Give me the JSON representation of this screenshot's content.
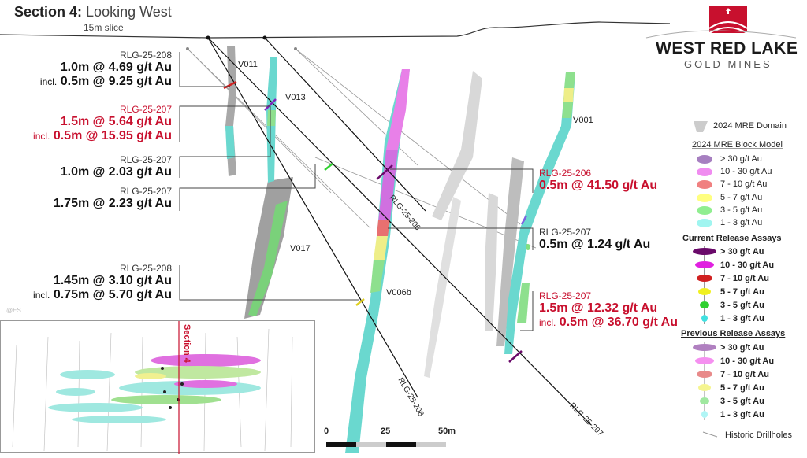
{
  "header": {
    "title_bold": "Section 4:",
    "title_light": "Looking West",
    "subtitle": "15m slice"
  },
  "logo": {
    "name": "WEST RED LAKE",
    "sub": "GOLD MINES",
    "accent": "#c8102e"
  },
  "watermark": "@ES",
  "veins": [
    "V011",
    "V013",
    "V001",
    "V017",
    "V006b"
  ],
  "drillholes": [
    "RLG-25-206",
    "RLG-25-208",
    "RLG-25-207"
  ],
  "intercepts_left": [
    {
      "hole": "RLG-25-208",
      "red": false,
      "lines": [
        {
          "prefix": "",
          "text": "1.0m @ 4.69 g/t Au"
        },
        {
          "prefix": "incl.",
          "text": "0.5m @ 9.25 g/t Au"
        }
      ]
    },
    {
      "hole": "RLG-25-207",
      "red": true,
      "lines": [
        {
          "prefix": "",
          "text": "1.5m @ 5.64 g/t Au"
        },
        {
          "prefix": "incl.",
          "text": "0.5m @ 15.95 g/t Au"
        }
      ]
    },
    {
      "hole": "RLG-25-207",
      "red": false,
      "lines": [
        {
          "prefix": "",
          "text": "1.0m @ 2.03 g/t Au"
        }
      ]
    },
    {
      "hole": "RLG-25-207",
      "red": false,
      "lines": [
        {
          "prefix": "",
          "text": "1.75m @ 2.23 g/t Au"
        }
      ]
    },
    {
      "hole": "RLG-25-208",
      "red": false,
      "lines": [
        {
          "prefix": "",
          "text": "1.45m @ 3.10 g/t Au"
        },
        {
          "prefix": "incl.",
          "text": "0.75m @ 5.70 g/t Au"
        }
      ]
    }
  ],
  "intercepts_right": [
    {
      "hole": "RLG-25-206",
      "red": true,
      "lines": [
        {
          "prefix": "",
          "text": "0.5m @ 41.50 g/t Au"
        }
      ]
    },
    {
      "hole": "RLG-25-207",
      "red": false,
      "lines": [
        {
          "prefix": "",
          "text": "0.5m @ 1.24 g/t Au"
        }
      ]
    },
    {
      "hole": "RLG-25-207",
      "red": true,
      "lines": [
        {
          "prefix": "",
          "text": "1.5m @ 12.32 g/t Au"
        },
        {
          "prefix": "incl.",
          "text": "0.5m @ 36.70 g/t Au"
        }
      ]
    }
  ],
  "inset": {
    "label": "Section 4"
  },
  "scale": {
    "ticks": [
      "0",
      "25",
      "50m"
    ]
  },
  "legend": {
    "domain": "2024 MRE Domain",
    "block_model": {
      "title": "2024 MRE Block Model",
      "items": [
        {
          "label": "> 30 g/t Au",
          "color": "#a67fc0"
        },
        {
          "label": "10 - 30 g/t Au",
          "color": "#f08cf0"
        },
        {
          "label": "7 - 10 g/t Au",
          "color": "#f08080"
        },
        {
          "label": "5 - 7 g/t Au",
          "color": "#ffff80"
        },
        {
          "label": "3 - 5 g/t Au",
          "color": "#90ee90"
        },
        {
          "label": "1 - 3 g/t Au",
          "color": "#a0f5f0"
        }
      ]
    },
    "current": {
      "title": "Current Release Assays",
      "items": [
        {
          "label": "> 30 g/t Au",
          "color": "#6a0a6a"
        },
        {
          "label": "10 - 30 g/t Au",
          "color": "#e020e0"
        },
        {
          "label": "7 - 10 g/t Au",
          "color": "#d02020"
        },
        {
          "label": "5 - 7 g/t Au",
          "color": "#f0f020"
        },
        {
          "label": "3 - 5 g/t Au",
          "color": "#30d030"
        },
        {
          "label": "1 - 3 g/t Au",
          "color": "#40e0e0"
        }
      ]
    },
    "previous": {
      "title": "Previous Release Assays",
      "items": [
        {
          "label": "> 30 g/t Au",
          "color": "#b080c0"
        },
        {
          "label": "10 - 30 g/t Au",
          "color": "#f590f0"
        },
        {
          "label": "7 - 10 g/t Au",
          "color": "#e88a8a"
        },
        {
          "label": "5 - 7 g/t Au",
          "color": "#f5f590"
        },
        {
          "label": "3 - 5 g/t Au",
          "color": "#a0e8a0"
        },
        {
          "label": "1 - 3 g/t Au",
          "color": "#b0f5f5"
        }
      ]
    },
    "historic": "Historic Drillholes"
  }
}
